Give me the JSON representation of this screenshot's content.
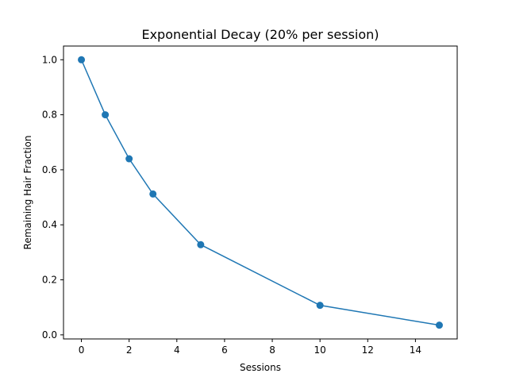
{
  "chart_data": {
    "type": "line",
    "title": "Exponential Decay (20% per session)",
    "xlabel": "Sessions",
    "ylabel": "Remaining Hair Fraction",
    "x": [
      0,
      1,
      2,
      3,
      5,
      10,
      15
    ],
    "series": [
      {
        "values": [
          1.0,
          0.8,
          0.64,
          0.512,
          0.32768,
          0.10737,
          0.03518
        ]
      }
    ],
    "xlim": [
      -0.75,
      15.75
    ],
    "ylim": [
      -0.0148,
      1.0498
    ],
    "xticks": [
      "0",
      "2",
      "4",
      "6",
      "8",
      "10",
      "12",
      "14"
    ],
    "yticks": [
      "0.0",
      "0.2",
      "0.4",
      "0.6",
      "0.8",
      "1.0"
    ],
    "grid": false,
    "markers": true,
    "line_color": "#1f77b4"
  }
}
